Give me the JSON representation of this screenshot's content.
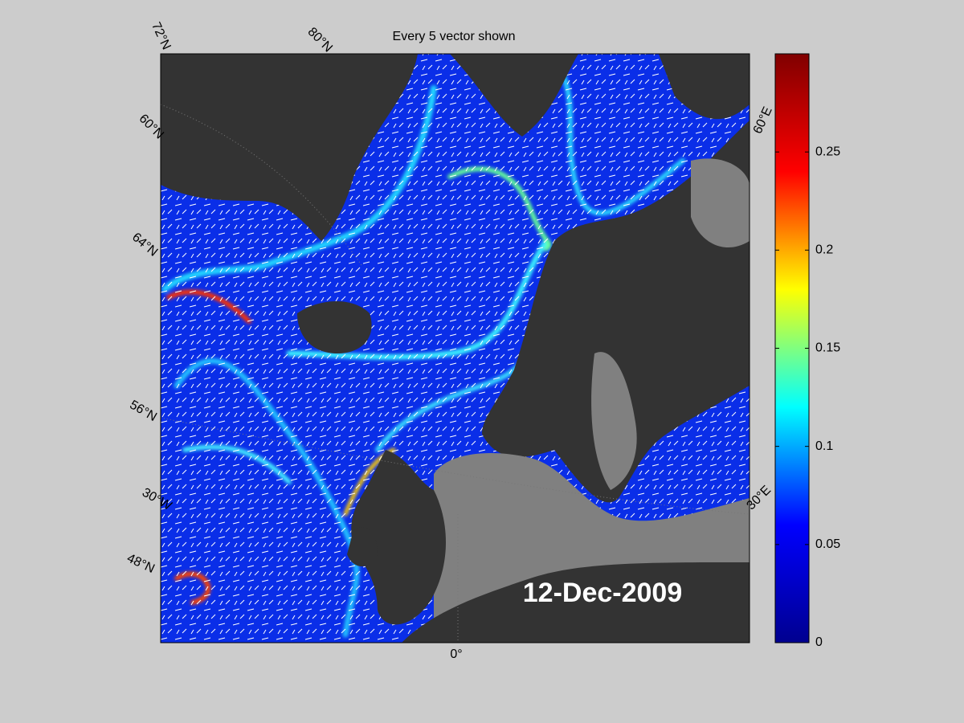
{
  "title": "Every 5 vector shown",
  "date_label": "12-Dec-2009",
  "map_labels": [
    "72°N",
    "80°N",
    "60°N",
    "64°N",
    "56°N",
    "30°W",
    "48°N",
    "0°",
    "30°E",
    "60°E"
  ],
  "colorbar": {
    "colormap": "jet",
    "ylim": [
      0,
      0.3
    ],
    "yticks": [
      0,
      0.05,
      0.1,
      0.15,
      0.2,
      0.25
    ]
  }
}
